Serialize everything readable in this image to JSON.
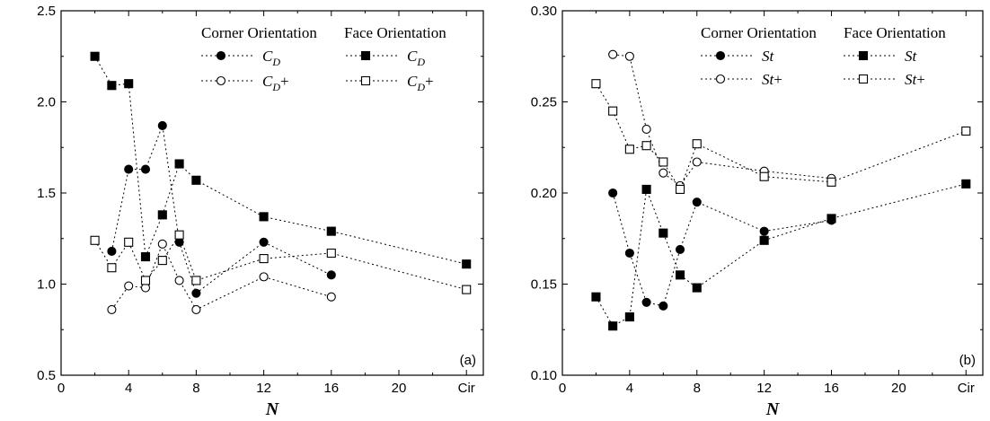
{
  "chart_data": [
    {
      "type": "line",
      "xlabel": "N",
      "ylabel": "",
      "xlim": [
        0,
        25
      ],
      "ylim": [
        0.5,
        2.5
      ],
      "xticks": [
        {
          "v": 0,
          "label": "0"
        },
        {
          "v": 4,
          "label": "4"
        },
        {
          "v": 8,
          "label": "8"
        },
        {
          "v": 12,
          "label": "12"
        },
        {
          "v": 16,
          "label": "16"
        },
        {
          "v": 20,
          "label": "20"
        },
        {
          "v": 24,
          "label": "Cir"
        }
      ],
      "yticks": [
        {
          "v": 0.5,
          "label": "0.5"
        },
        {
          "v": 1.0,
          "label": "1.0"
        },
        {
          "v": 1.5,
          "label": "1.5"
        },
        {
          "v": 2.0,
          "label": "2.0"
        },
        {
          "v": 2.5,
          "label": "2.5"
        }
      ],
      "panel_label": "(a)",
      "legend": {
        "placement": "top-right",
        "headings": [
          "Corner Orientation",
          "Face Orientation"
        ],
        "base_symbol": "C",
        "subscript": "D"
      },
      "series": [
        {
          "name": "CD",
          "group": "Corner Orientation",
          "marker": "circle-filled",
          "suffix": "",
          "points": [
            [
              3,
              1.18
            ],
            [
              4,
              1.63
            ],
            [
              5,
              1.63
            ],
            [
              6,
              1.87
            ],
            [
              7,
              1.23
            ],
            [
              8,
              0.95
            ],
            [
              12,
              1.23
            ],
            [
              16,
              1.05
            ]
          ]
        },
        {
          "name": "CD+",
          "group": "Corner Orientation",
          "marker": "circle-open",
          "suffix": "+",
          "points": [
            [
              3,
              0.86
            ],
            [
              4,
              0.99
            ],
            [
              5,
              0.98
            ],
            [
              6,
              1.22
            ],
            [
              7,
              1.02
            ],
            [
              8,
              0.86
            ],
            [
              12,
              1.04
            ],
            [
              16,
              0.93
            ]
          ]
        },
        {
          "name": "CD",
          "group": "Face Orientation",
          "marker": "square-filled",
          "suffix": "",
          "points": [
            [
              2,
              2.25
            ],
            [
              3,
              2.09
            ],
            [
              4,
              2.1
            ],
            [
              5,
              1.15
            ],
            [
              6,
              1.38
            ],
            [
              7,
              1.66
            ],
            [
              8,
              1.57
            ],
            [
              12,
              1.37
            ],
            [
              16,
              1.29
            ],
            [
              24,
              1.11
            ]
          ]
        },
        {
          "name": "CD+",
          "group": "Face Orientation",
          "marker": "square-open",
          "suffix": "+",
          "points": [
            [
              2,
              1.24
            ],
            [
              3,
              1.09
            ],
            [
              4,
              1.23
            ],
            [
              5,
              1.02
            ],
            [
              6,
              1.13
            ],
            [
              7,
              1.27
            ],
            [
              8,
              1.02
            ],
            [
              12,
              1.14
            ],
            [
              16,
              1.17
            ],
            [
              24,
              0.97
            ]
          ]
        }
      ]
    },
    {
      "type": "line",
      "xlabel": "N",
      "ylabel": "",
      "xlim": [
        0,
        25
      ],
      "ylim": [
        0.1,
        0.3
      ],
      "xticks": [
        {
          "v": 0,
          "label": "0"
        },
        {
          "v": 4,
          "label": "4"
        },
        {
          "v": 8,
          "label": "8"
        },
        {
          "v": 12,
          "label": "12"
        },
        {
          "v": 16,
          "label": "16"
        },
        {
          "v": 20,
          "label": "20"
        },
        {
          "v": 24,
          "label": "Cir"
        }
      ],
      "yticks": [
        {
          "v": 0.1,
          "label": "0.10"
        },
        {
          "v": 0.15,
          "label": "0.15"
        },
        {
          "v": 0.2,
          "label": "0.20"
        },
        {
          "v": 0.25,
          "label": "0.25"
        },
        {
          "v": 0.3,
          "label": "0.30"
        }
      ],
      "panel_label": "(b)",
      "legend": {
        "placement": "top-right",
        "headings": [
          "Corner Orientation",
          "Face Orientation"
        ],
        "base_symbol": "St",
        "subscript": ""
      },
      "series": [
        {
          "name": "St",
          "group": "Corner Orientation",
          "marker": "circle-filled",
          "suffix": "",
          "points": [
            [
              3,
              0.2
            ],
            [
              4,
              0.167
            ],
            [
              5,
              0.14
            ],
            [
              6,
              0.138
            ],
            [
              7,
              0.169
            ],
            [
              8,
              0.195
            ],
            [
              12,
              0.179
            ],
            [
              16,
              0.185
            ]
          ]
        },
        {
          "name": "St+",
          "group": "Corner Orientation",
          "marker": "circle-open",
          "suffix": "+",
          "points": [
            [
              3,
              0.276
            ],
            [
              4,
              0.275
            ],
            [
              5,
              0.235
            ],
            [
              6,
              0.211
            ],
            [
              7,
              0.204
            ],
            [
              8,
              0.217
            ],
            [
              12,
              0.212
            ],
            [
              16,
              0.208
            ]
          ]
        },
        {
          "name": "St",
          "group": "Face Orientation",
          "marker": "square-filled",
          "suffix": "",
          "points": [
            [
              2,
              0.143
            ],
            [
              3,
              0.127
            ],
            [
              4,
              0.132
            ],
            [
              5,
              0.202
            ],
            [
              6,
              0.178
            ],
            [
              7,
              0.155
            ],
            [
              8,
              0.148
            ],
            [
              12,
              0.174
            ],
            [
              16,
              0.186
            ],
            [
              24,
              0.205
            ]
          ]
        },
        {
          "name": "St+",
          "group": "Face Orientation",
          "marker": "square-open",
          "suffix": "+",
          "points": [
            [
              2,
              0.26
            ],
            [
              3,
              0.245
            ],
            [
              4,
              0.224
            ],
            [
              5,
              0.226
            ],
            [
              6,
              0.217
            ],
            [
              7,
              0.202
            ],
            [
              8,
              0.227
            ],
            [
              12,
              0.209
            ],
            [
              16,
              0.206
            ],
            [
              24,
              0.234
            ]
          ]
        }
      ]
    }
  ]
}
